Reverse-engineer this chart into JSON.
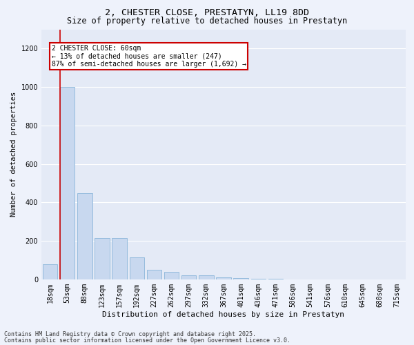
{
  "title1": "2, CHESTER CLOSE, PRESTATYN, LL19 8DD",
  "title2": "Size of property relative to detached houses in Prestatyn",
  "xlabel": "Distribution of detached houses by size in Prestatyn",
  "ylabel": "Number of detached properties",
  "categories": [
    "18sqm",
    "53sqm",
    "88sqm",
    "123sqm",
    "157sqm",
    "192sqm",
    "227sqm",
    "262sqm",
    "297sqm",
    "332sqm",
    "367sqm",
    "401sqm",
    "436sqm",
    "471sqm",
    "506sqm",
    "541sqm",
    "576sqm",
    "610sqm",
    "645sqm",
    "680sqm",
    "715sqm"
  ],
  "values": [
    80,
    1000,
    450,
    215,
    215,
    115,
    50,
    40,
    20,
    20,
    10,
    8,
    3,
    2,
    1,
    1,
    0,
    0,
    0,
    0,
    0
  ],
  "bar_color": "#c8d8ef",
  "bar_edgecolor": "#7badd4",
  "vline_color": "#cc0000",
  "annotation_text": "2 CHESTER CLOSE: 60sqm\n← 13% of detached houses are smaller (247)\n87% of semi-detached houses are larger (1,692) →",
  "annotation_box_color": "#ffffff",
  "annotation_box_edgecolor": "#cc0000",
  "ylim": [
    0,
    1300
  ],
  "yticks": [
    0,
    200,
    400,
    600,
    800,
    1000,
    1200
  ],
  "footnote1": "Contains HM Land Registry data © Crown copyright and database right 2025.",
  "footnote2": "Contains public sector information licensed under the Open Government Licence v3.0.",
  "bg_color": "#eef2fb",
  "plot_bg_color": "#e4eaf6",
  "grid_color": "#ffffff",
  "title1_fontsize": 9.5,
  "title2_fontsize": 8.5,
  "xlabel_fontsize": 8,
  "ylabel_fontsize": 7.5,
  "tick_fontsize": 7,
  "annot_fontsize": 7,
  "footnote_fontsize": 6
}
